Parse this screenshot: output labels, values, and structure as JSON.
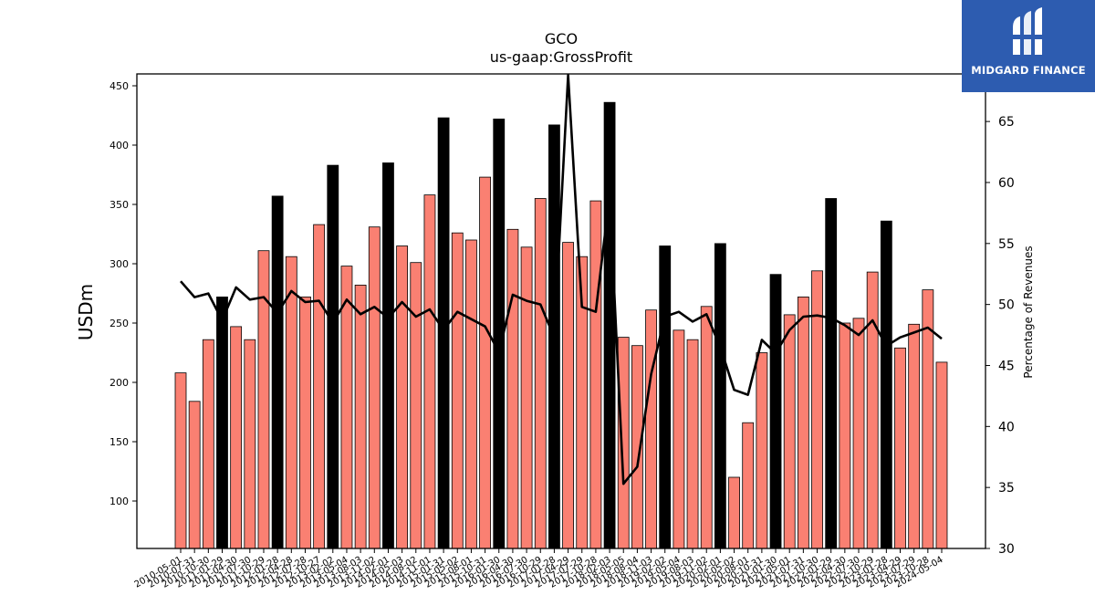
{
  "chart_data": {
    "type": "bar",
    "title": "GCO",
    "subtitle": "us-gaap:GrossProfit",
    "ylabel": "USDm",
    "y2label": "Percentage of Revenues",
    "ylim": [
      60,
      460
    ],
    "y2lim": [
      30,
      68.9
    ],
    "yticks": [
      100,
      150,
      200,
      250,
      300,
      350,
      400,
      450
    ],
    "y2ticks": [
      30,
      35,
      40,
      45,
      50,
      55,
      60,
      65
    ],
    "categories": [
      "2010-05-01",
      "2010-07-31",
      "2010-10-30",
      "2011-01-29",
      "2011-04-30",
      "2011-07-30",
      "2011-10-29",
      "2012-01-28",
      "2012-04-28",
      "2012-07-28",
      "2012-10-27",
      "2013-02-02",
      "2013-05-04",
      "2013-08-03",
      "2013-11-02",
      "2014-02-01",
      "2014-05-03",
      "2014-08-02",
      "2014-11-01",
      "2015-01-31",
      "2015-05-02",
      "2015-08-01",
      "2015-10-31",
      "2016-01-30",
      "2016-04-30",
      "2016-07-30",
      "2016-10-29",
      "2017-01-28",
      "2017-04-29",
      "2017-07-29",
      "2017-10-28",
      "2018-02-03",
      "2018-05-05",
      "2018-08-04",
      "2018-11-03",
      "2019-02-02",
      "2019-05-04",
      "2019-08-03",
      "2019-11-02",
      "2020-02-01",
      "2020-05-02",
      "2020-08-01",
      "2020-10-31",
      "2021-01-30",
      "2021-05-01",
      "2021-07-31",
      "2021-10-30",
      "2022-01-29",
      "2022-04-30",
      "2022-07-30",
      "2022-10-29",
      "2023-01-28",
      "2023-04-29",
      "2023-07-29",
      "2023-10-28",
      "2024-05-04"
    ],
    "visible_tick_labels": [
      "2010-05-01",
      "2010-07-31",
      "2010-10-30",
      "2011-01-29",
      "2011-04-30",
      "2011-07-30",
      "2011-10-29",
      "2012-01-28",
      "2012-04-28",
      "2012-07-28",
      "2012-10-27",
      "2013-02-02",
      "2013-05-04",
      "2013-08-03",
      "2013-11-02",
      "2014-02-01",
      "2014-05-03",
      "2014-08-02",
      "2014-11-01",
      "2015-01-31",
      "2015-05-02",
      "2015-08-01",
      "2015-10-31",
      "2016-01-30",
      "2016-04-30",
      "2016-07-30",
      "2016-10-29",
      "2017-01-28",
      "2017-04-29",
      "2017-07-29",
      "2017-10-28",
      "2018-02-03",
      "2018-05-05",
      "2018-08-04",
      "2018-11-03",
      "2019-02-02",
      "2019-05-04",
      "2019-08-03",
      "2019-11-02",
      "2020-02-01",
      "2020-05-02",
      "2020-08-01",
      "2020-10-31",
      "2021-01-30",
      "2021-05-01",
      "2021-07-31",
      "2021-10-30",
      "2022-01-29",
      "2022-04-30",
      "2022-07-30",
      "2022-10-29",
      "2023-01-28",
      "2023-04-29",
      "2023-07-29",
      "2023-10-28",
      "2024-05-04"
    ],
    "bar_values": [
      208,
      184,
      236,
      272,
      247,
      236,
      311,
      357,
      306,
      272,
      333,
      383,
      298,
      282,
      331,
      385,
      315,
      301,
      358,
      423,
      326,
      320,
      373,
      422,
      329,
      314,
      355,
      417,
      318,
      306,
      353,
      436,
      238,
      231,
      261,
      315,
      244,
      236,
      264,
      317,
      120,
      166,
      225,
      291,
      257,
      272,
      294,
      355,
      250,
      254,
      293,
      336,
      229,
      249,
      278,
      217
    ],
    "highlight_index": [
      3,
      7,
      11,
      15,
      19,
      23,
      27,
      31,
      35,
      39,
      43,
      47,
      51
    ],
    "colors": {
      "bar": "#fa8072",
      "highlight_bar": "#000000",
      "line": "#000000"
    },
    "line_values": [
      51.9,
      50.6,
      50.9,
      48.7,
      51.4,
      50.4,
      50.6,
      49.3,
      51.1,
      50.2,
      50.3,
      48.5,
      50.4,
      49.2,
      49.8,
      48.9,
      50.2,
      49.0,
      49.6,
      47.9,
      49.4,
      48.8,
      48.2,
      46.1,
      50.8,
      50.3,
      50.0,
      47.3,
      68.8,
      49.8,
      49.4,
      59.0,
      35.3,
      36.7,
      44.3,
      49.0,
      49.4,
      48.6,
      49.2,
      46.5,
      43.0,
      42.6,
      47.1,
      46.0,
      47.9,
      49.0,
      49.1,
      48.9,
      48.3,
      47.5,
      48.7,
      46.6,
      47.3,
      47.7,
      48.1,
      47.2
    ]
  },
  "logo": {
    "name": "MIDGARD FINANCE"
  }
}
